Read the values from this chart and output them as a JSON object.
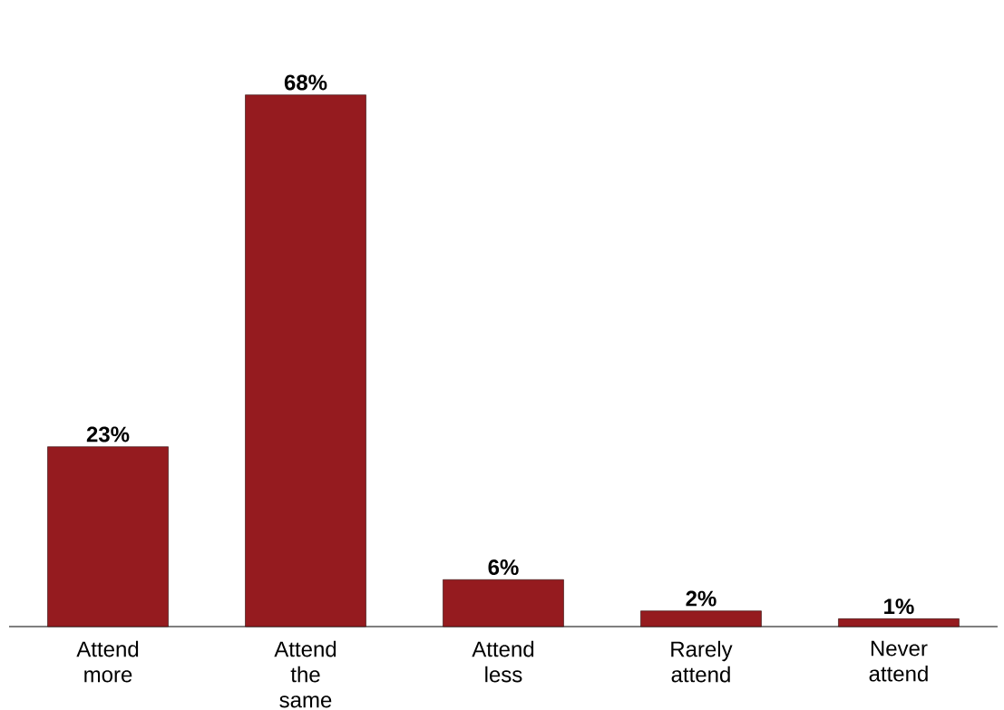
{
  "chart_data": {
    "type": "bar",
    "categories": [
      "Attend more",
      "Attend the same",
      "Attend less",
      "Rarely attend",
      "Never attend"
    ],
    "values": [
      23,
      68,
      6,
      2,
      1
    ],
    "value_labels": [
      "23%",
      "68%",
      "6%",
      "2%",
      "1%"
    ],
    "color": "#951b1f"
  }
}
